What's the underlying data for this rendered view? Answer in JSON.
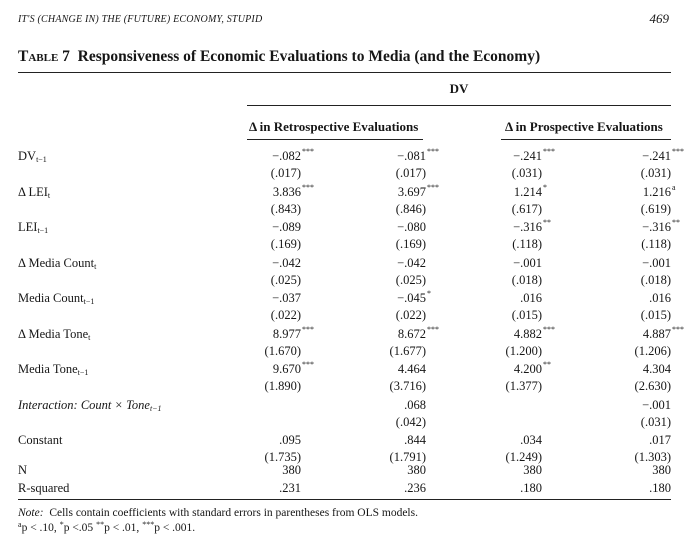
{
  "header": {
    "running_head": "IT'S (CHANGE IN) THE (FUTURE) ECONOMY, STUPID",
    "page_number": "469"
  },
  "table": {
    "label": "Table 7",
    "title": "Responsiveness of Economic Evaluations to Media (and the Economy)",
    "dv_label": "DV",
    "groups": [
      "Δ in Retrospective Evaluations",
      "Δ in Prospective Evaluations"
    ],
    "rows": [
      {
        "base": "DV",
        "sub": "t−1",
        "italic": false,
        "coef": [
          "−.082",
          "−.081",
          "−.241",
          "−.241"
        ],
        "stars": [
          "***",
          "***",
          "***",
          "***"
        ],
        "se": [
          "(.017)",
          "(.017)",
          "(.031)",
          "(.031)"
        ]
      },
      {
        "base": "Δ LEI",
        "sub": "t",
        "italic": false,
        "coef": [
          "3.836",
          "3.697",
          "1.214",
          "1.216"
        ],
        "stars": [
          "***",
          "***",
          "*",
          "a"
        ],
        "se": [
          "(.843)",
          "(.846)",
          "(.617)",
          "(.619)"
        ]
      },
      {
        "base": "LEI",
        "sub": "t−1",
        "italic": false,
        "coef": [
          "−.089",
          "−.080",
          "−.316",
          "−.316"
        ],
        "stars": [
          "",
          "",
          "**",
          "**"
        ],
        "se": [
          "(.169)",
          "(.169)",
          "(.118)",
          "(.118)"
        ]
      },
      {
        "base": "Δ Media Count",
        "sub": "t",
        "italic": false,
        "coef": [
          "−.042",
          "−.042",
          "−.001",
          "−.001"
        ],
        "stars": [
          "",
          "",
          "",
          ""
        ],
        "se": [
          "(.025)",
          "(.025)",
          "(.018)",
          "(.018)"
        ]
      },
      {
        "base": "Media Count",
        "sub": "t−1",
        "italic": false,
        "coef": [
          "−.037",
          "−.045",
          ".016",
          ".016"
        ],
        "stars": [
          "",
          "*",
          "",
          ""
        ],
        "se": [
          "(.022)",
          "(.022)",
          "(.015)",
          "(.015)"
        ]
      },
      {
        "base": "Δ Media Tone",
        "sub": "t",
        "italic": false,
        "coef": [
          "8.977",
          "8.672",
          "4.882",
          "4.887"
        ],
        "stars": [
          "***",
          "***",
          "***",
          "***"
        ],
        "se": [
          "(1.670)",
          "(1.677)",
          "(1.200)",
          "(1.206)"
        ]
      },
      {
        "base": "Media Tone",
        "sub": "t−1",
        "italic": false,
        "coef": [
          "9.670",
          "4.464",
          "4.200",
          "4.304"
        ],
        "stars": [
          "***",
          "",
          "**",
          ""
        ],
        "se": [
          "(1.890)",
          "(3.716)",
          "(1.377)",
          "(2.630)"
        ]
      },
      {
        "base": "Interaction: Count × Tone",
        "sub": "t−1",
        "italic": true,
        "coef": [
          "",
          ".068",
          "",
          "−.001"
        ],
        "stars": [
          "",
          "",
          "",
          ""
        ],
        "se": [
          "",
          "(.042)",
          "",
          "(.031)"
        ]
      },
      {
        "base": "Constant",
        "sub": "",
        "italic": false,
        "coef": [
          ".095",
          ".844",
          ".034",
          ".017"
        ],
        "stars": [
          "",
          "",
          "",
          ""
        ],
        "se": [
          "(1.735)",
          "(1.791)",
          "(1.249)",
          "(1.303)"
        ]
      }
    ],
    "stats": [
      {
        "label": "N",
        "values": [
          "380",
          "380",
          "380",
          "380"
        ]
      },
      {
        "label": "R-squared",
        "values": [
          ".231",
          ".236",
          ".180",
          ".180"
        ]
      }
    ]
  },
  "notes": {
    "note_label": "Note:",
    "note_text": "Cells contain coefficients with standard errors in parentheses from OLS models.",
    "sig_legend": [
      {
        "mark": "a",
        "text": "p < .10, "
      },
      {
        "mark": "*",
        "text": "p <.05 "
      },
      {
        "mark": "**",
        "text": "p < .01, "
      },
      {
        "mark": "***",
        "text": "p < .001."
      }
    ]
  }
}
